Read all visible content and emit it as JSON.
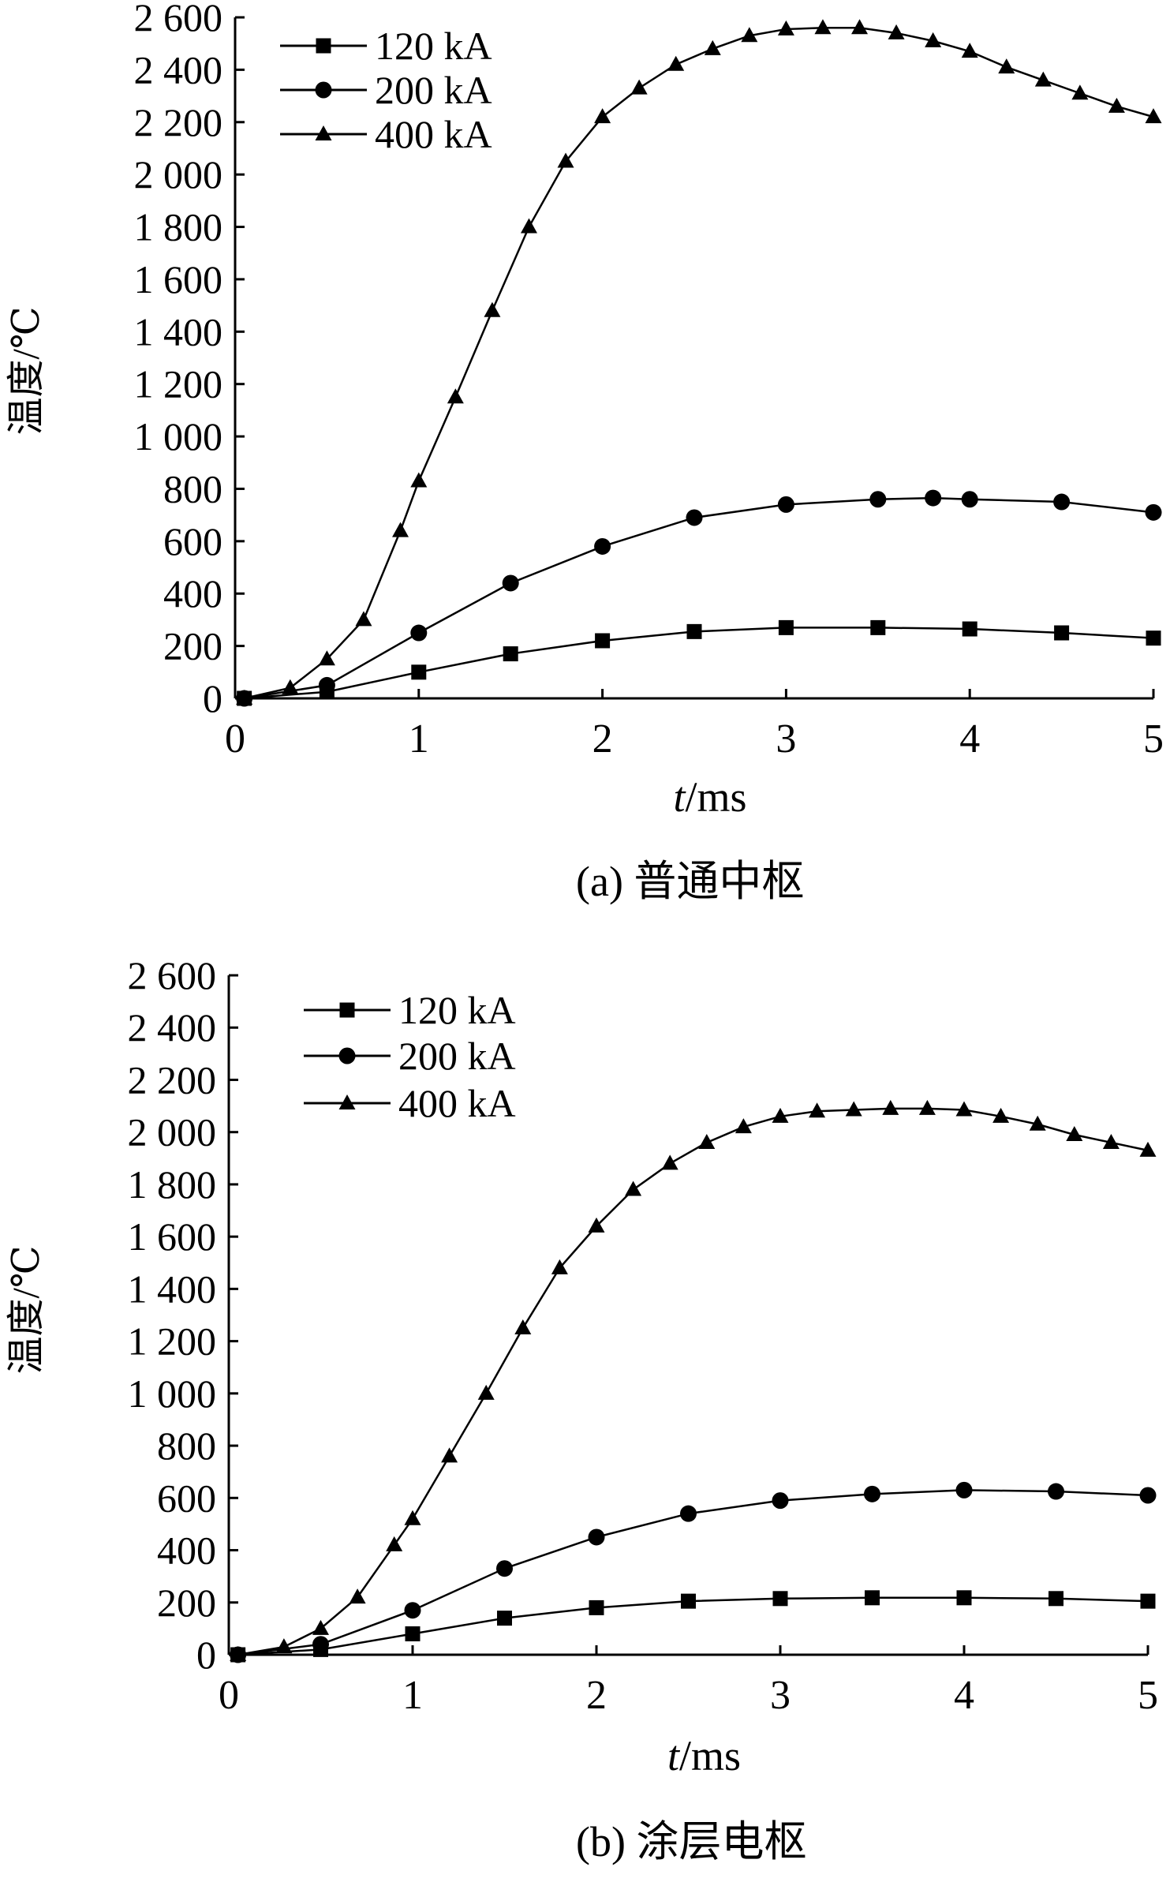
{
  "chart_data": [
    {
      "type": "line",
      "caption": "(a)  普通中枢",
      "xlabel_italic": "t",
      "xlabel_rest": "/ms",
      "ylabel": "温度/℃",
      "xlim": [
        0,
        5
      ],
      "ylim": [
        0,
        2600
      ],
      "xticks": [
        "0",
        "1",
        "2",
        "3",
        "4",
        "5"
      ],
      "yticks": [
        "0",
        "200",
        "400",
        "600",
        "800",
        "1 000",
        "1 200",
        "1 400",
        "1 600",
        "1 800",
        "2 000",
        "2 200",
        "2 400",
        "2 600"
      ],
      "grid": false,
      "legend_position": "top-left",
      "series": [
        {
          "name": "120 kA",
          "marker": "square",
          "x": [
            0.05,
            0.5,
            1.0,
            1.5,
            2.0,
            2.5,
            3.0,
            3.5,
            4.0,
            4.5,
            5.0
          ],
          "y": [
            0,
            25,
            100,
            170,
            220,
            255,
            270,
            270,
            265,
            250,
            230
          ]
        },
        {
          "name": "200 kA",
          "marker": "circle",
          "x": [
            0.05,
            0.5,
            1.0,
            1.5,
            2.0,
            2.5,
            3.0,
            3.5,
            3.8,
            4.0,
            4.5,
            5.0
          ],
          "y": [
            0,
            50,
            250,
            440,
            580,
            690,
            740,
            760,
            765,
            760,
            750,
            710
          ]
        },
        {
          "name": "400 kA",
          "marker": "triangle",
          "x": [
            0.05,
            0.3,
            0.5,
            0.7,
            0.9,
            1.0,
            1.2,
            1.4,
            1.6,
            1.8,
            2.0,
            2.2,
            2.4,
            2.6,
            2.8,
            3.0,
            3.2,
            3.4,
            3.6,
            3.8,
            4.0,
            4.2,
            4.4,
            4.6,
            4.8,
            5.0
          ],
          "y": [
            0,
            40,
            150,
            300,
            640,
            830,
            1150,
            1480,
            1800,
            2050,
            2220,
            2330,
            2420,
            2480,
            2530,
            2555,
            2560,
            2560,
            2540,
            2510,
            2470,
            2410,
            2360,
            2310,
            2260,
            2220
          ]
        }
      ]
    },
    {
      "type": "line",
      "caption": "(b)  涂层电枢",
      "xlabel_italic": "t",
      "xlabel_rest": "/ms",
      "ylabel": "温度/℃",
      "xlim": [
        0,
        5
      ],
      "ylim": [
        0,
        2600
      ],
      "xticks": [
        "0",
        "1",
        "2",
        "3",
        "4",
        "5"
      ],
      "yticks": [
        "0",
        "200",
        "400",
        "600",
        "800",
        "1 000",
        "1 200",
        "1 400",
        "1 600",
        "1 800",
        "2 000",
        "2 200",
        "2 400",
        "2 600"
      ],
      "grid": false,
      "legend_position": "top-left",
      "series": [
        {
          "name": "120 kA",
          "marker": "square",
          "x": [
            0.05,
            0.5,
            1.0,
            1.5,
            2.0,
            2.5,
            3.0,
            3.5,
            4.0,
            4.5,
            5.0
          ],
          "y": [
            0,
            20,
            80,
            140,
            180,
            205,
            215,
            218,
            218,
            215,
            205
          ]
        },
        {
          "name": "200 kA",
          "marker": "circle",
          "x": [
            0.05,
            0.5,
            1.0,
            1.5,
            2.0,
            2.5,
            3.0,
            3.5,
            4.0,
            4.5,
            5.0
          ],
          "y": [
            0,
            40,
            170,
            330,
            450,
            540,
            590,
            615,
            630,
            625,
            610
          ]
        },
        {
          "name": "400 kA",
          "marker": "triangle",
          "x": [
            0.05,
            0.3,
            0.5,
            0.7,
            0.9,
            1.0,
            1.2,
            1.4,
            1.6,
            1.8,
            2.0,
            2.2,
            2.4,
            2.6,
            2.8,
            3.0,
            3.2,
            3.4,
            3.6,
            3.8,
            4.0,
            4.2,
            4.4,
            4.6,
            4.8,
            5.0
          ],
          "y": [
            0,
            30,
            100,
            220,
            420,
            520,
            760,
            1000,
            1250,
            1480,
            1640,
            1780,
            1880,
            1960,
            2020,
            2060,
            2080,
            2085,
            2090,
            2090,
            2085,
            2060,
            2030,
            1990,
            1960,
            1930
          ]
        }
      ]
    }
  ]
}
